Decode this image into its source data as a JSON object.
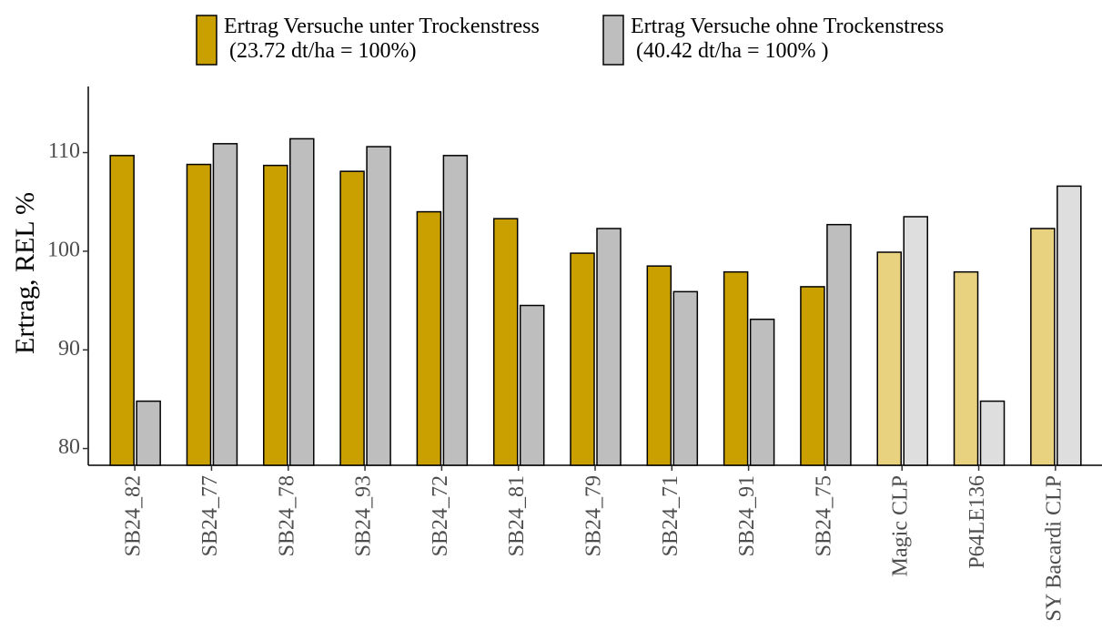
{
  "chart_data": {
    "type": "bar",
    "y_label": "Ertrag, REL %",
    "categories": [
      "SB24_82",
      "SB24_77",
      "SB24_78",
      "SB24_93",
      "SB24_72",
      "SB24_81",
      "SB24_79",
      "SB24_71",
      "SB24_91",
      "SB24_75",
      "Magic CLP",
      "P64LE136",
      "SY Bacardi CLP"
    ],
    "series": [
      {
        "name": "Ertrag Versuche unter Trockenstress\n(23.72 dt/ha = 100%)",
        "color": "#c9a000",
        "colors": [
          "#c9a000",
          "#c9a000",
          "#c9a000",
          "#c9a000",
          "#c9a000",
          "#c9a000",
          "#c9a000",
          "#c9a000",
          "#c9a000",
          "#c9a000",
          "#e8d17f",
          "#e8d17f",
          "#e8d17f"
        ],
        "values": [
          109.7,
          108.8,
          108.7,
          108.1,
          104.0,
          103.3,
          99.8,
          98.5,
          97.9,
          96.4,
          99.9,
          97.9,
          102.3
        ]
      },
      {
        "name": "Ertrag Versuche ohne Trockenstress\n(40.42 dt/ha = 100% )",
        "color": "#bebebe",
        "colors": [
          "#bebebe",
          "#bebebe",
          "#bebebe",
          "#bebebe",
          "#bebebe",
          "#bebebe",
          "#bebebe",
          "#bebebe",
          "#bebebe",
          "#bebebe",
          "#dedede",
          "#dedede",
          "#dedede"
        ],
        "values": [
          84.8,
          110.9,
          111.4,
          110.6,
          109.7,
          94.5,
          102.3,
          95.9,
          93.1,
          102.7,
          103.5,
          84.8,
          106.6
        ]
      }
    ],
    "ylim": [
      78.3,
      116.7
    ],
    "yticks": [
      80,
      90,
      100,
      110
    ],
    "grid": false,
    "legend": "top"
  }
}
